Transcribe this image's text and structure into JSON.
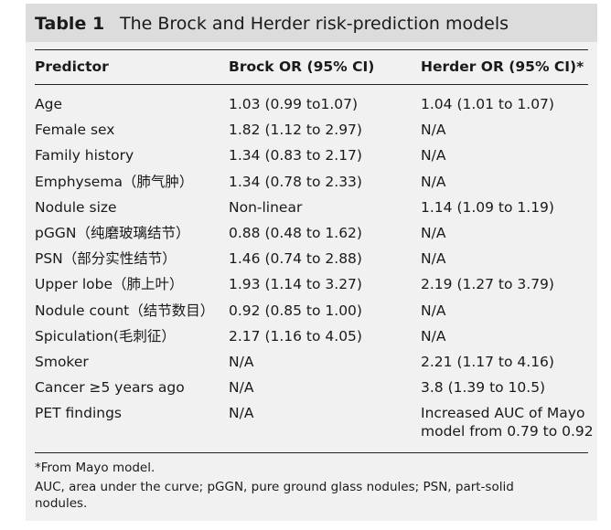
{
  "table": {
    "label": "Table 1",
    "title": "The Brock and Herder risk-prediction models",
    "headers": [
      "Predictor",
      "Brock OR (95% CI)",
      "Herder OR (95% CI)*"
    ],
    "rows": [
      [
        "Age",
        "1.03 (0.99 to1.07)",
        "1.04 (1.01 to 1.07)"
      ],
      [
        "Female sex",
        "1.82 (1.12 to 2.97)",
        "N/A"
      ],
      [
        "Family history",
        "1.34 (0.83 to 2.17)",
        "N/A"
      ],
      [
        "Emphysema（肺气肿）",
        "1.34 (0.78 to 2.33)",
        "N/A"
      ],
      [
        "Nodule size",
        "Non-linear",
        "1.14 (1.09 to 1.19)"
      ],
      [
        "pGGN（纯磨玻璃结节）",
        "0.88 (0.48 to 1.62)",
        "N/A"
      ],
      [
        "PSN（部分实性结节）",
        "1.46 (0.74 to 2.88)",
        "N/A"
      ],
      [
        "Upper lobe（肺上叶）",
        "1.93 (1.14 to 3.27)",
        "2.19 (1.27 to 3.79)"
      ],
      [
        "Nodule count（结节数目）",
        "0.92 (0.85 to 1.00)",
        "N/A"
      ],
      [
        "Spiculation(毛刺征）",
        "2.17 (1.16 to 4.05)",
        "N/A"
      ],
      [
        "Smoker",
        "N/A",
        "2.21 (1.17 to 4.16)"
      ],
      [
        "Cancer ≥5 years ago",
        "N/A",
        "3.8 (1.39 to 10.5)"
      ],
      [
        "PET findings",
        "N/A",
        "Increased AUC of Mayo\nmodel from 0.79 to 0.92"
      ]
    ],
    "footnotes": [
      "*From Mayo model.",
      "AUC, area under the curve; pGGN, pure ground glass nodules; PSN, part-solid",
      "nodules."
    ]
  }
}
